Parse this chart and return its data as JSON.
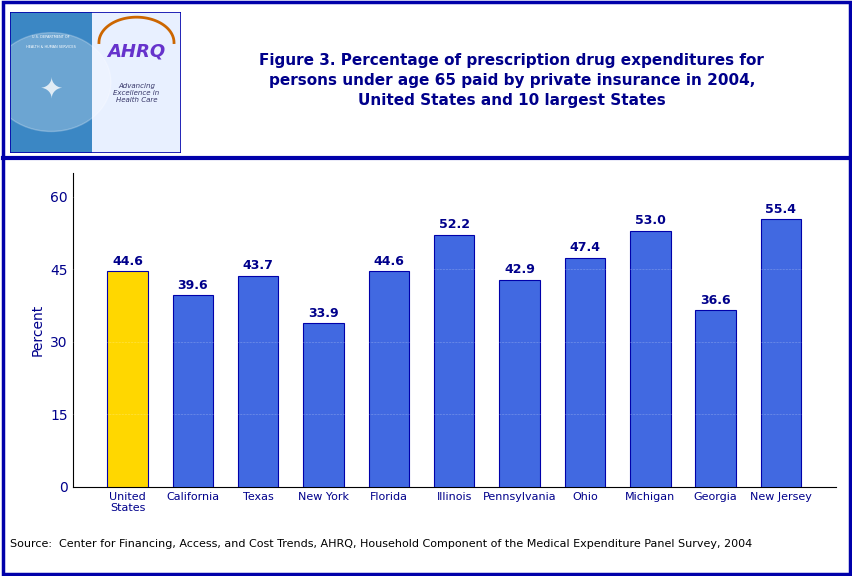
{
  "categories": [
    "United\nStates",
    "California",
    "Texas",
    "New York",
    "Florida",
    "Illinois",
    "Pennsylvania",
    "Ohio",
    "Michigan",
    "Georgia",
    "New Jersey"
  ],
  "values": [
    44.6,
    39.6,
    43.7,
    33.9,
    44.6,
    52.2,
    42.9,
    47.4,
    53.0,
    36.6,
    55.4
  ],
  "bar_colors": [
    "#FFD700",
    "#4169E1",
    "#4169E1",
    "#4169E1",
    "#4169E1",
    "#4169E1",
    "#4169E1",
    "#4169E1",
    "#4169E1",
    "#4169E1",
    "#4169E1"
  ],
  "bar_blue": "#4169E1",
  "bar_gold": "#FFD700",
  "ylabel": "Percent",
  "ylim": [
    0,
    65
  ],
  "yticks": [
    0,
    15,
    30,
    45,
    60
  ],
  "title_line1": "Figure 3. Percentage of prescription drug expenditures for",
  "title_line2": "persons under age 65 paid by private insurance in 2004,",
  "title_line3": "United States and 10 largest States",
  "source_text": "Source:  Center for Financing, Access, and Cost Trends, AHRQ, Household Component of the Medical Expenditure Panel Survey, 2004",
  "background_color": "#FFFFFF",
  "border_color": "#0000AA",
  "title_color": "#00008B",
  "label_color": "#00008B",
  "axis_color": "#000000",
  "value_label_fontsize": 9,
  "ylabel_fontsize": 10,
  "tick_label_fontsize": 8,
  "source_fontsize": 8,
  "title_fontsize": 11,
  "header_bg": "#FFFFFF",
  "logo_left_bg": "#3B87C4",
  "logo_right_bg": "#E8F0FF",
  "ahrq_color": "#6633CC",
  "ahrq_arc_color": "#CC6600",
  "separator_color": "#0000AA",
  "separator_linewidth": 3
}
